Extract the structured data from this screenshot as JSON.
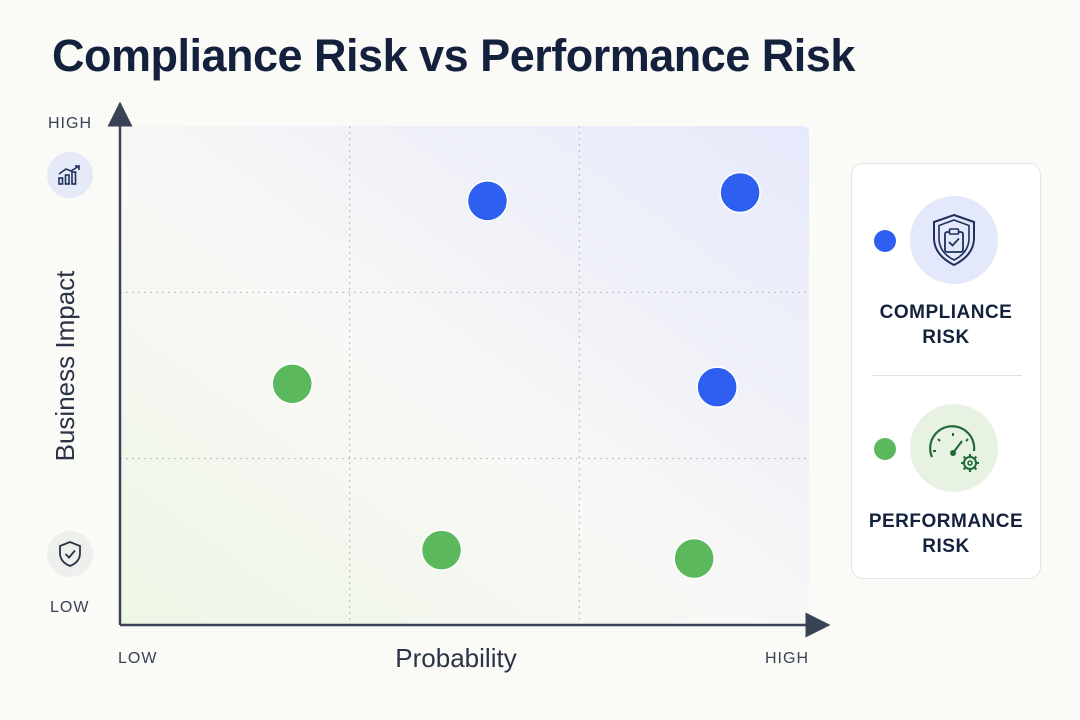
{
  "title": "Compliance Risk vs Performance Risk",
  "chart_data": {
    "type": "scatter",
    "xlabel": "Probability",
    "ylabel": "Business Impact",
    "x_tick_labels": {
      "low": "LOW",
      "high": "HIGH"
    },
    "y_tick_labels": {
      "low": "LOW",
      "high": "HIGH"
    },
    "xlim": [
      0,
      3
    ],
    "ylim": [
      0,
      3
    ],
    "grid": "3x3 dotted",
    "legend_position": "right",
    "series": [
      {
        "name": "COMPLIANCE RISK",
        "color": "#2f5ff0",
        "points": [
          {
            "x": 1.6,
            "y": 2.55
          },
          {
            "x": 2.7,
            "y": 2.6
          },
          {
            "x": 2.6,
            "y": 1.43
          }
        ]
      },
      {
        "name": "PERFORMANCE RISK",
        "color": "#5cb85c",
        "points": [
          {
            "x": 0.75,
            "y": 1.45
          },
          {
            "x": 1.4,
            "y": 0.45
          },
          {
            "x": 2.5,
            "y": 0.4
          }
        ]
      }
    ]
  },
  "legend": {
    "items": [
      {
        "label": "COMPLIANCE\nRISK",
        "color": "#2f5ff0",
        "icon": "shield-clipboard-icon"
      },
      {
        "label": "PERFORMANCE\nRISK",
        "color": "#5cb85c",
        "icon": "speedometer-gear-icon"
      }
    ]
  },
  "axis_icons": {
    "high": "growth-chart-icon",
    "low": "shield-check-icon"
  }
}
